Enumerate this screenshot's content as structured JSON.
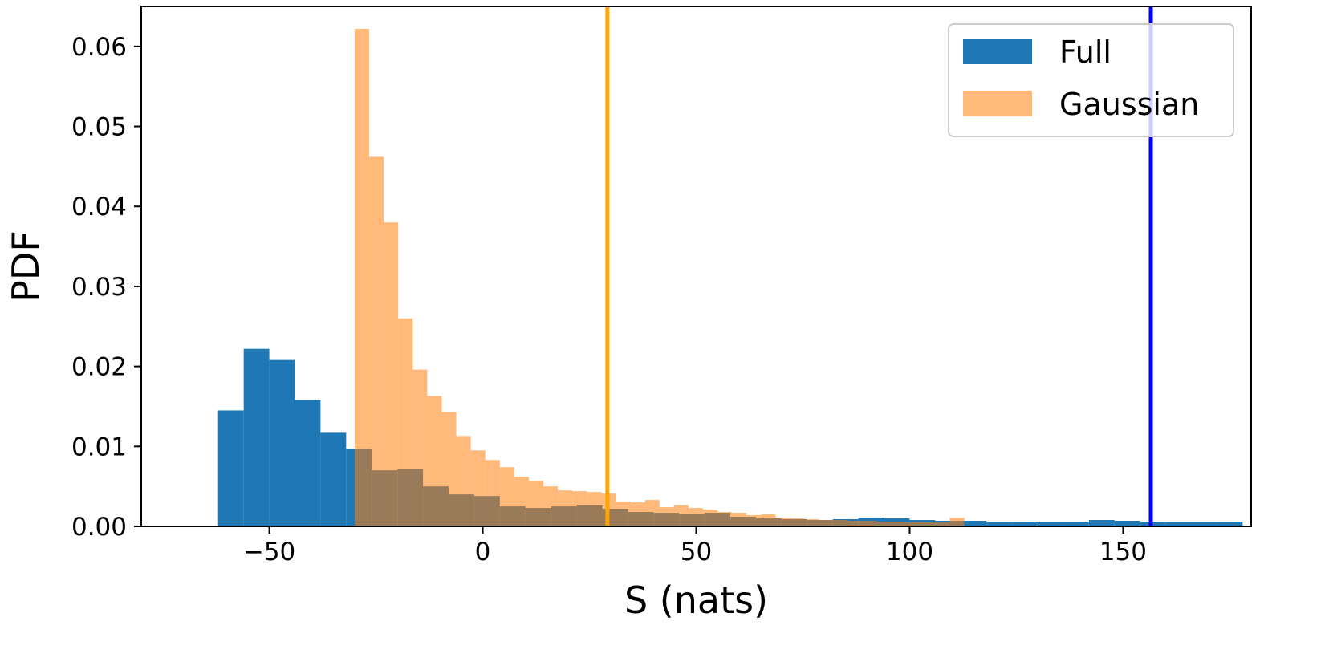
{
  "chart_data": {
    "type": "bar",
    "title": "",
    "xlabel": "S (nats)",
    "ylabel": "PDF",
    "xlim": [
      -80,
      180
    ],
    "ylim": [
      0,
      0.065
    ],
    "x_ticks": [
      -50,
      0,
      50,
      100,
      150
    ],
    "x_tick_labels": [
      "−50",
      "0",
      "50",
      "100",
      "150"
    ],
    "y_ticks": [
      0,
      0.01,
      0.02,
      0.03,
      0.04,
      0.05,
      0.06
    ],
    "y_tick_labels": [
      "0.00",
      "0.01",
      "0.02",
      "0.03",
      "0.04",
      "0.05",
      "0.06"
    ],
    "grid": false,
    "legend_position": "top-right",
    "series": [
      {
        "name": "Full",
        "color": "#1f77b4",
        "opacity": 1.0,
        "bin_edges": [
          -62,
          -56,
          -50,
          -44,
          -38,
          -32,
          -26,
          -20,
          -14,
          -8,
          -2,
          4,
          10,
          16,
          22,
          28,
          34,
          40,
          46,
          52,
          58,
          64,
          70,
          76,
          82,
          88,
          94,
          100,
          106,
          112,
          118,
          124,
          130,
          136,
          142,
          148,
          154,
          160,
          166,
          172,
          178
        ],
        "values": [
          0.0145,
          0.0222,
          0.0208,
          0.0158,
          0.0117,
          0.0097,
          0.007,
          0.0072,
          0.005,
          0.004,
          0.0038,
          0.0025,
          0.0023,
          0.0025,
          0.0027,
          0.0022,
          0.0018,
          0.0017,
          0.0016,
          0.0017,
          0.0012,
          0.001,
          0.0009,
          0.0008,
          0.0009,
          0.0011,
          0.001,
          0.0008,
          0.0007,
          0.0007,
          0.0006,
          0.0006,
          0.0005,
          0.0005,
          0.0008,
          0.0007,
          0.0006,
          0.0006,
          0.0006,
          0.0006
        ]
      },
      {
        "name": "Gaussian",
        "color": "#ff7f0e",
        "opacity": 0.55,
        "bin_edges": [
          -30,
          -26.6,
          -23.2,
          -19.8,
          -16.4,
          -13,
          -9.6,
          -6.2,
          -2.8,
          0.6,
          4,
          7.4,
          10.8,
          14.2,
          17.6,
          21,
          24.4,
          27.8,
          31.2,
          34.6,
          38,
          41.4,
          44.8,
          48.2,
          51.6,
          55,
          58.4,
          61.8,
          65.2,
          68.6,
          72,
          75.4,
          78.8,
          82.2,
          85.6,
          89,
          92.4,
          95.8,
          99.2,
          102.6,
          106,
          109.4,
          112.8
        ],
        "values": [
          0.0622,
          0.0462,
          0.038,
          0.026,
          0.0196,
          0.0163,
          0.0143,
          0.0113,
          0.0095,
          0.0083,
          0.0074,
          0.0062,
          0.0057,
          0.005,
          0.0045,
          0.0044,
          0.0043,
          0.0041,
          0.0031,
          0.003,
          0.0033,
          0.0024,
          0.0027,
          0.0023,
          0.0021,
          0.0018,
          0.0017,
          0.0014,
          0.0015,
          0.0011,
          0.001,
          0.0009,
          0.0008,
          0.0008,
          0.0007,
          0.0007,
          0.0006,
          0.0006,
          0.0005,
          0.0005,
          0.0005,
          0.0011
        ]
      }
    ],
    "vertical_lines": [
      {
        "x": 29.2,
        "color": "#ffa500"
      },
      {
        "x": 156.5,
        "color": "#0000ff"
      }
    ]
  }
}
